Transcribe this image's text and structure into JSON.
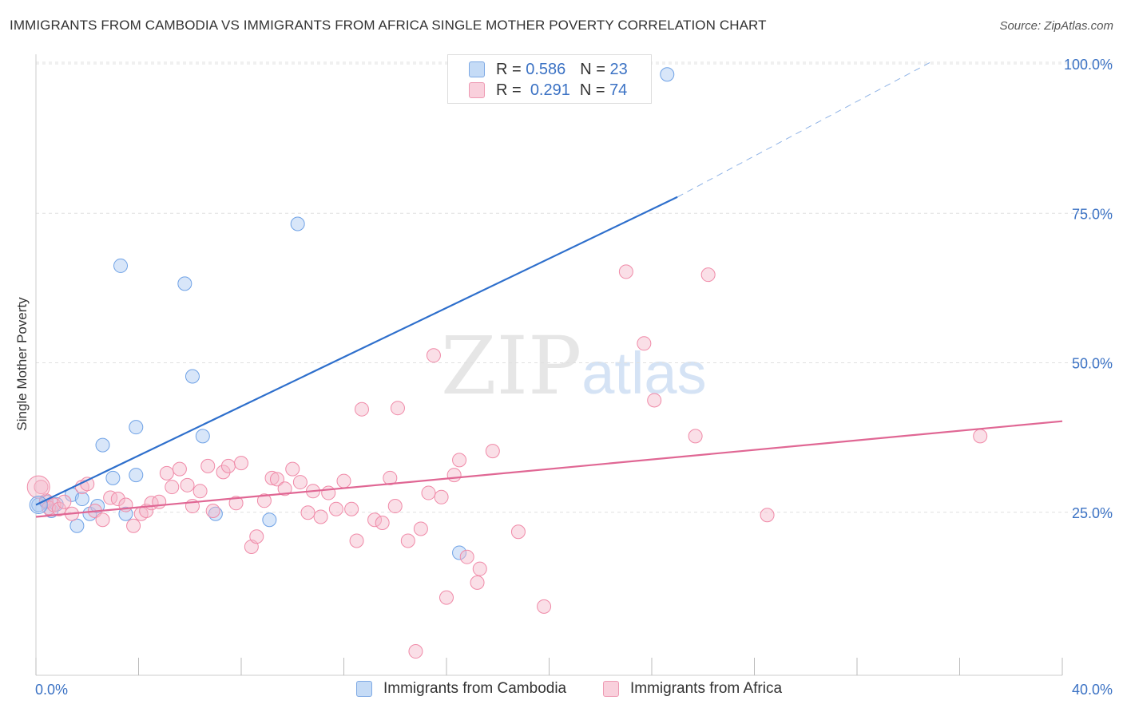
{
  "title": "IMMIGRANTS FROM CAMBODIA VS IMMIGRANTS FROM AFRICA SINGLE MOTHER POVERTY CORRELATION CHART",
  "source": "Source: ZipAtlas.com",
  "watermark": {
    "zip": "ZIP",
    "atlas": "atlas"
  },
  "legend": {
    "cambodia": {
      "r_label": "R =",
      "r_value": "0.586",
      "n_label": "N =",
      "n_value": "23",
      "color": "#a9c8f2"
    },
    "africa": {
      "r_label": "R =",
      "r_value": "0.291",
      "n_label": "N =",
      "n_value": "74",
      "color": "#f5b8ca"
    }
  },
  "bottom_legend": {
    "cambodia": "Immigrants from Cambodia",
    "africa": "Immigrants from Africa"
  },
  "chart_data": {
    "type": "scatter",
    "ylabel": "Single Mother Poverty",
    "xlim": [
      0,
      40
    ],
    "ylim": [
      0,
      100
    ],
    "x_ticks": [
      {
        "value": 0,
        "label": "0.0%"
      },
      {
        "value": 40,
        "label": "40.0%"
      }
    ],
    "y_ticks": [
      {
        "value": 25,
        "label": "25.0%"
      },
      {
        "value": 50,
        "label": "50.0%"
      },
      {
        "value": 75,
        "label": "75.0%"
      },
      {
        "value": 100,
        "label": "100.0%"
      }
    ],
    "grid": true,
    "series": [
      {
        "name": "Immigrants from Cambodia",
        "color": "#6fa2e6",
        "fill": "#a9c8f2",
        "line_color": "#2e6fcc",
        "trend": {
          "x0": 0,
          "y0": 28.5,
          "x1": 25,
          "y1": 80,
          "dash_to_x": 40,
          "dash_to_y": 110
        },
        "points": [
          [
            0.1,
            28.5
          ],
          [
            0.4,
            29.0
          ],
          [
            0.6,
            27.5
          ],
          [
            0.8,
            28.6
          ],
          [
            1.4,
            30.2
          ],
          [
            1.6,
            25.0
          ],
          [
            1.8,
            29.5
          ],
          [
            2.1,
            27.0
          ],
          [
            2.4,
            28.3
          ],
          [
            2.6,
            38.5
          ],
          [
            3.0,
            33.0
          ],
          [
            3.3,
            68.5
          ],
          [
            3.5,
            27.0
          ],
          [
            3.9,
            41.5
          ],
          [
            3.9,
            33.5
          ],
          [
            5.8,
            65.5
          ],
          [
            6.1,
            50.0
          ],
          [
            6.5,
            40.0
          ],
          [
            7.0,
            27.0
          ],
          [
            9.1,
            26.0
          ],
          [
            10.2,
            75.5
          ],
          [
            16.5,
            20.5
          ],
          [
            24.6,
            100.5
          ]
        ]
      },
      {
        "name": "Immigrants from Africa",
        "color": "#f08aa8",
        "fill": "#f5b8ca",
        "line_color": "#e06794",
        "trend": {
          "x0": 0,
          "y0": 26.5,
          "x1": 40,
          "y1": 42.5
        },
        "points": [
          [
            0.2,
            31.5
          ],
          [
            0.4,
            29.2
          ],
          [
            0.5,
            28.0
          ],
          [
            0.7,
            28.5
          ],
          [
            0.9,
            27.8
          ],
          [
            1.1,
            29.0
          ],
          [
            1.4,
            27.0
          ],
          [
            1.8,
            31.5
          ],
          [
            2.0,
            32.0
          ],
          [
            2.3,
            27.5
          ],
          [
            2.6,
            26.0
          ],
          [
            2.9,
            29.7
          ],
          [
            3.2,
            29.5
          ],
          [
            3.5,
            28.5
          ],
          [
            3.8,
            25.0
          ],
          [
            4.1,
            27.0
          ],
          [
            4.3,
            27.5
          ],
          [
            4.5,
            28.8
          ],
          [
            4.8,
            29.0
          ],
          [
            5.1,
            33.8
          ],
          [
            5.3,
            31.5
          ],
          [
            5.6,
            34.5
          ],
          [
            5.9,
            31.8
          ],
          [
            6.1,
            28.3
          ],
          [
            6.4,
            30.8
          ],
          [
            6.7,
            35.0
          ],
          [
            6.9,
            27.5
          ],
          [
            7.3,
            34.0
          ],
          [
            7.5,
            35.0
          ],
          [
            7.8,
            28.8
          ],
          [
            8.0,
            35.5
          ],
          [
            8.4,
            21.5
          ],
          [
            8.6,
            23.2
          ],
          [
            8.9,
            29.2
          ],
          [
            9.2,
            33.0
          ],
          [
            9.4,
            32.8
          ],
          [
            9.7,
            31.2
          ],
          [
            10.0,
            34.5
          ],
          [
            10.3,
            32.3
          ],
          [
            10.6,
            27.2
          ],
          [
            10.8,
            30.8
          ],
          [
            11.1,
            26.5
          ],
          [
            11.4,
            30.5
          ],
          [
            11.7,
            27.8
          ],
          [
            12.0,
            32.5
          ],
          [
            12.3,
            27.8
          ],
          [
            12.5,
            22.5
          ],
          [
            12.7,
            44.5
          ],
          [
            13.2,
            26.0
          ],
          [
            13.5,
            25.5
          ],
          [
            13.8,
            33.0
          ],
          [
            14.0,
            28.3
          ],
          [
            14.1,
            44.7
          ],
          [
            14.5,
            22.5
          ],
          [
            14.8,
            4.0
          ],
          [
            15.0,
            24.5
          ],
          [
            15.3,
            30.5
          ],
          [
            15.5,
            53.5
          ],
          [
            15.8,
            29.8
          ],
          [
            16.0,
            13.0
          ],
          [
            16.3,
            33.5
          ],
          [
            16.5,
            36.0
          ],
          [
            16.8,
            19.8
          ],
          [
            17.2,
            15.5
          ],
          [
            17.3,
            17.8
          ],
          [
            17.8,
            37.5
          ],
          [
            18.8,
            24.0
          ],
          [
            19.8,
            11.5
          ],
          [
            23.0,
            67.5
          ],
          [
            23.7,
            55.5
          ],
          [
            24.1,
            46.0
          ],
          [
            25.7,
            40.0
          ],
          [
            26.2,
            67.0
          ],
          [
            28.5,
            26.8
          ],
          [
            36.8,
            40.0
          ]
        ]
      }
    ]
  }
}
